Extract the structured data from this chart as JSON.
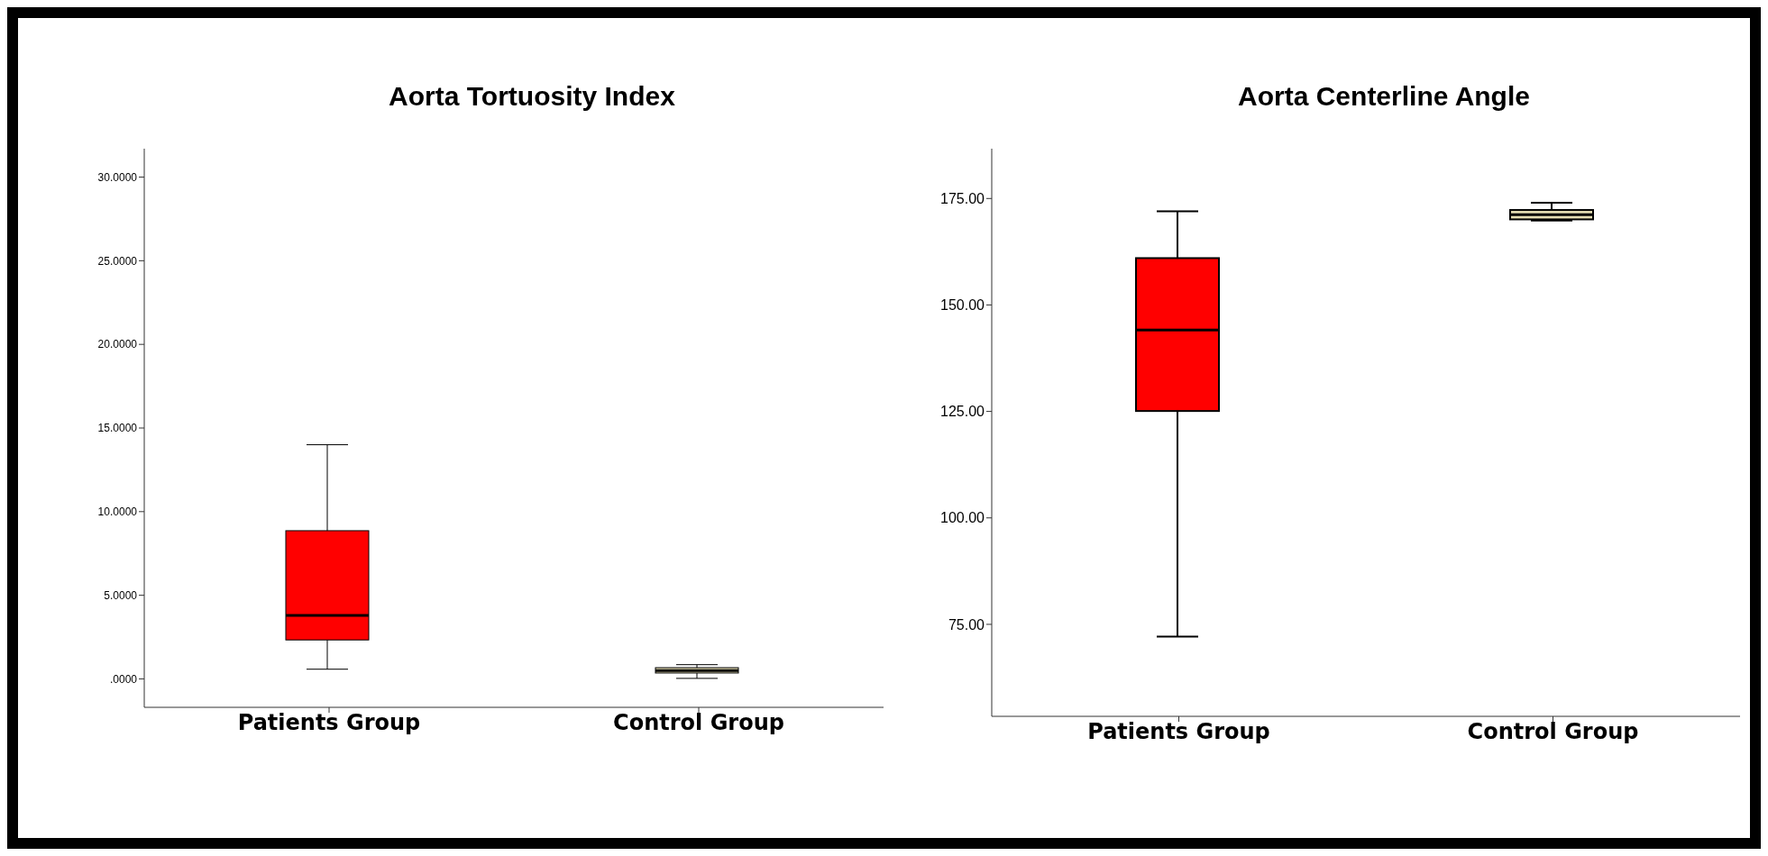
{
  "chart_data": [
    {
      "type": "box",
      "title": "Aorta Tortuosity Index",
      "categories": [
        "Patients Group",
        "Control Group"
      ],
      "colors": [
        "#ff0000",
        "#e6dfb4"
      ],
      "boxes": [
        {
          "low": 0.58,
          "q1": 2.33,
          "median": 3.79,
          "q3": 8.86,
          "high": 14.0
        },
        {
          "low": 0.03,
          "q1": 0.35,
          "median": 0.5,
          "q3": 0.67,
          "high": 0.85
        }
      ],
      "ylim": [
        -1.7,
        31.7
      ],
      "yticks": [
        {
          "value": 0,
          "label": ".0000"
        },
        {
          "value": 5,
          "label": "5.0000"
        },
        {
          "value": 10,
          "label": "10.0000"
        },
        {
          "value": 15,
          "label": "15.0000"
        },
        {
          "value": 20,
          "label": "20.0000"
        },
        {
          "value": 25,
          "label": "25.0000"
        },
        {
          "value": 30,
          "label": "30.0000"
        }
      ]
    },
    {
      "type": "box",
      "title": "Aorta Centerline Angle",
      "categories": [
        "Patients Group",
        "Control Group"
      ],
      "colors": [
        "#ff0000",
        "#e6dfb4"
      ],
      "boxes": [
        {
          "low": 72.1,
          "q1": 125.1,
          "median": 144.1,
          "q3": 161.0,
          "high": 172.0
        },
        {
          "low": 169.8,
          "q1": 170.1,
          "median": 171.2,
          "q3": 172.3,
          "high": 174.0
        }
      ],
      "ylim": [
        53.4,
        186.7
      ],
      "yticks": [
        {
          "value": 75,
          "label": "75.00"
        },
        {
          "value": 100,
          "label": "100.00"
        },
        {
          "value": 125,
          "label": "125.00"
        },
        {
          "value": 150,
          "label": "150.00"
        },
        {
          "value": 175,
          "label": "175.00"
        }
      ]
    }
  ]
}
